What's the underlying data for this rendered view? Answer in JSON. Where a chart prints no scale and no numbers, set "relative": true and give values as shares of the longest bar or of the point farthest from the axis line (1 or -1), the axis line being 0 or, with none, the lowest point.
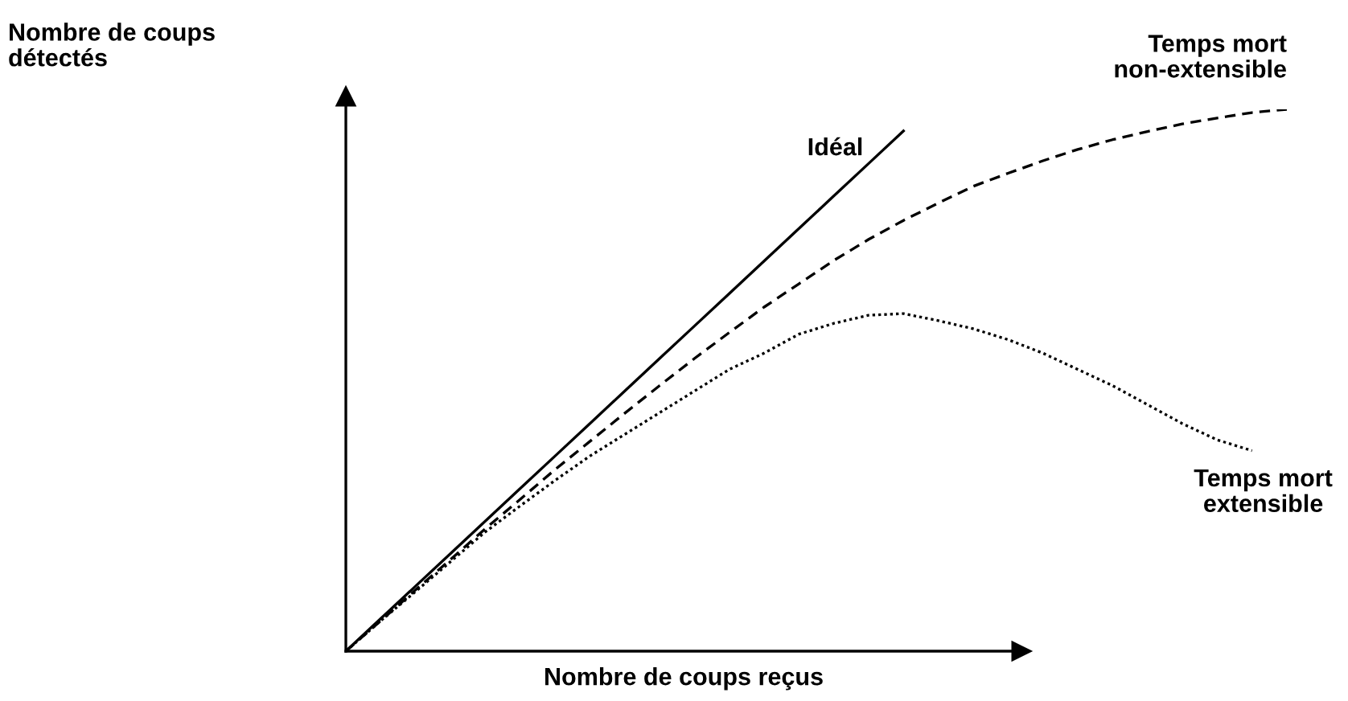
{
  "chart_data": {
    "type": "line",
    "relative": true,
    "xlabel": "Nombre de coups reçus",
    "ylabel": "Nombre de coups\ndétectés",
    "categories": [
      null,
      null,
      null,
      null,
      null,
      null,
      null,
      null,
      null,
      null,
      null,
      null,
      null,
      null,
      null,
      null,
      null,
      null,
      null,
      null,
      null,
      null,
      null,
      null,
      null,
      null,
      null,
      null
    ],
    "series": [
      {
        "name": "Idéal",
        "color": "#000000",
        "line_style": "solid",
        "values": [
          0,
          0.06,
          0.12,
          0.18,
          0.24,
          0.3,
          0.36,
          0.42,
          0.48,
          0.54,
          0.6,
          0.66,
          0.72,
          0.78,
          0.84,
          0.9,
          0.96,
          null,
          null,
          null,
          null,
          null,
          null,
          null,
          null,
          null,
          null,
          null
        ]
      },
      {
        "name": "Temps mort\nnon-extensible",
        "color": "#000000",
        "line_style": "dashed",
        "values": [
          0,
          0.056,
          0.113,
          0.169,
          0.226,
          0.28,
          0.335,
          0.387,
          0.439,
          0.49,
          0.54,
          0.588,
          0.635,
          0.678,
          0.721,
          0.76,
          0.795,
          0.827,
          0.858,
          0.882,
          0.905,
          0.926,
          0.944,
          0.959,
          0.973,
          0.984,
          0.994,
          1.0
        ]
      },
      {
        "name": "Temps mort\nextensible",
        "color": "#000000",
        "line_style": "dotted",
        "values": [
          0,
          0.056,
          0.11,
          0.165,
          0.22,
          0.268,
          0.315,
          0.36,
          0.4,
          0.44,
          0.48,
          0.52,
          0.55,
          0.585,
          0.605,
          0.62,
          0.623,
          0.61,
          0.595,
          0.575,
          0.55,
          0.52,
          0.49,
          0.455,
          0.42,
          0.39,
          0.37,
          null
        ]
      }
    ]
  }
}
